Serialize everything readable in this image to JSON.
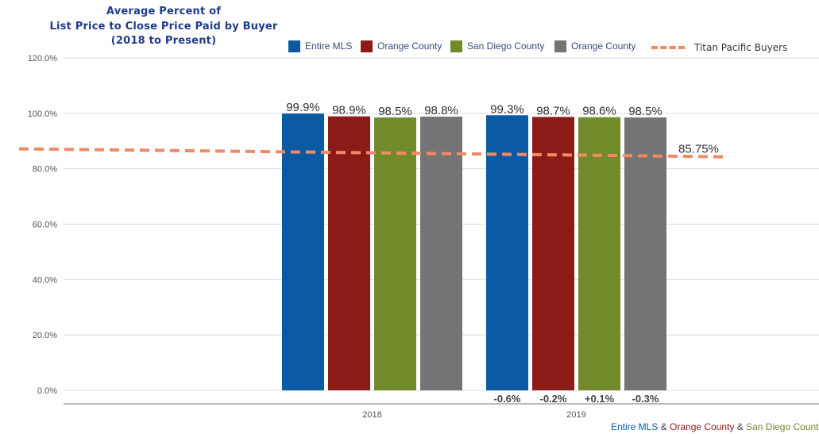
{
  "chart_data": {
    "type": "bar",
    "title_lines": [
      "Average Percent of",
      "List Price to Close Price Paid by Buyer",
      "(2018 to Present)"
    ],
    "categories": [
      "2018",
      "2019"
    ],
    "series": [
      {
        "name": "Entire MLS",
        "color": "#0a5aa3",
        "values": [
          99.9,
          99.3
        ],
        "labels": [
          "99.9%",
          "99.3%"
        ]
      },
      {
        "name": "Orange County",
        "color": "#8a1b16",
        "values": [
          98.9,
          98.7
        ],
        "labels": [
          "98.9%",
          "98.7%"
        ]
      },
      {
        "name": "San Diego County",
        "color": "#718a2a",
        "values": [
          98.5,
          98.6
        ],
        "labels": [
          "98.5%",
          "98.6%"
        ]
      },
      {
        "name": "Orange County",
        "color": "#747474",
        "values": [
          98.8,
          98.5
        ],
        "labels": [
          "98.8%",
          "98.5%"
        ]
      }
    ],
    "change_labels": [
      null,
      [
        "-0.6%",
        "-0.2%",
        "+0.1%",
        "-0.3%"
      ]
    ],
    "reference_line": {
      "name": "Titan Pacific Buyers",
      "value": 85.75,
      "label": "85.75%",
      "color": "#f08a66"
    },
    "ylim": [
      0,
      120
    ],
    "yticks": [
      0,
      20,
      40,
      60,
      80,
      100,
      120
    ],
    "ytick_labels": [
      "0.0%",
      "20.0%",
      "40.0%",
      "60.0%",
      "80.0%",
      "100.0%",
      "120.0%"
    ],
    "xlabel": "",
    "ylabel": "",
    "grid": true,
    "legend_position": "top-right",
    "footer_note": [
      {
        "text": "Entire MLS",
        "color": "#0a5aa3"
      },
      {
        "text": " & ",
        "color": "#444444"
      },
      {
        "text": "Orange County",
        "color": "#8a1b16"
      },
      {
        "text": " & ",
        "color": "#444444"
      },
      {
        "text": "San Diego Count",
        "color": "#718a2a"
      }
    ]
  }
}
